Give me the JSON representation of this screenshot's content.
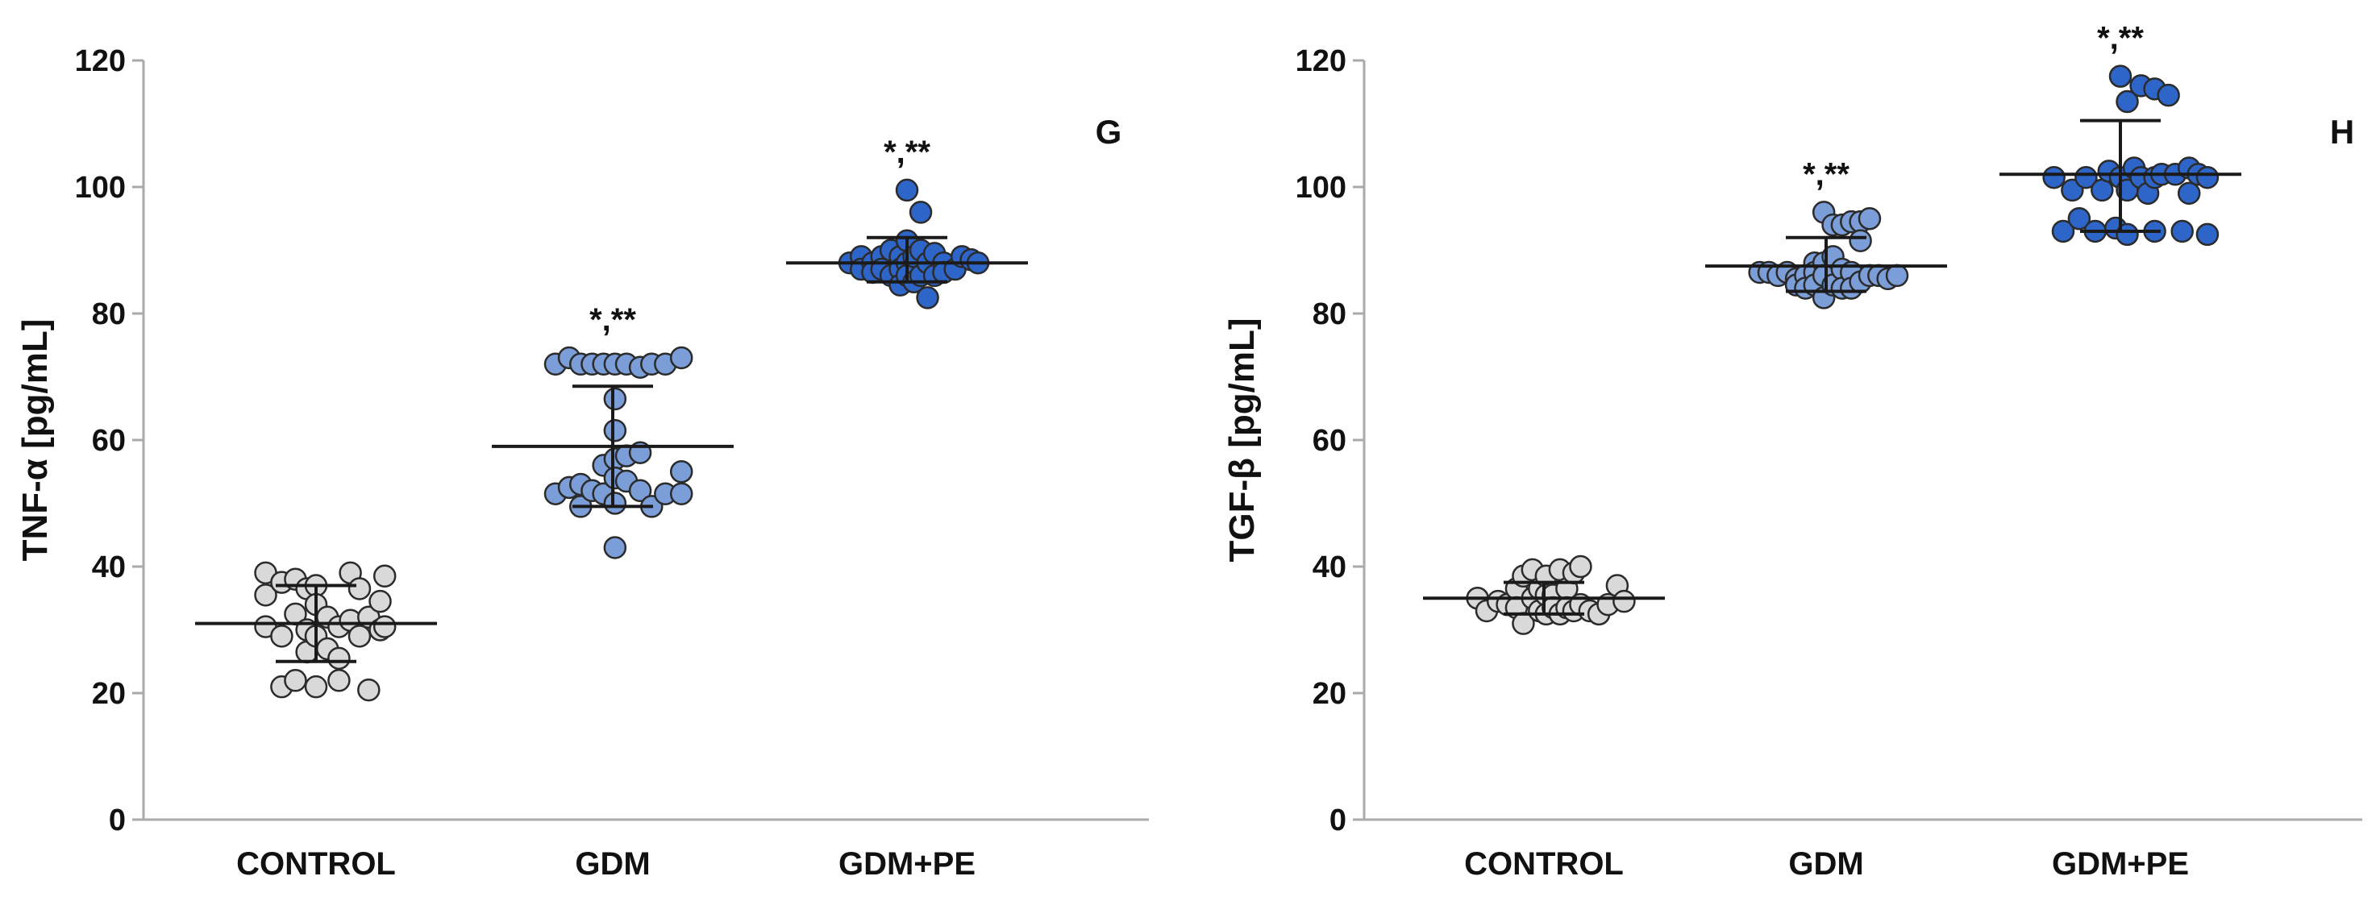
{
  "colors": {
    "axis": "#aaaaaa",
    "errorbar": "#1a1a1a",
    "point_stroke": "#2b2b2b",
    "series_fill": [
      "#d9d9d9",
      "#7b9ed8",
      "#2e65c9"
    ]
  },
  "chart_data": [
    {
      "type": "scatter",
      "panel_letter": "G",
      "ylabel": "TNF-α [pg/mL]",
      "ylim": [
        0,
        120
      ],
      "yticks": [
        0,
        20,
        40,
        60,
        80,
        100,
        120
      ],
      "yticks_text": [
        "0",
        "20",
        "40",
        "60",
        "80",
        "100",
        "120"
      ],
      "categories": [
        "CONTROL",
        "GDM",
        "GDM+PE"
      ],
      "series": [
        {
          "name": "CONTROL",
          "mean": 31,
          "err_low": 25,
          "err_high": 37,
          "annotation": "",
          "points": [
            [
              -0.44,
              39.0
            ],
            [
              -0.44,
              35.5
            ],
            [
              -0.44,
              30.5
            ],
            [
              -0.3,
              37.5
            ],
            [
              -0.3,
              29.0
            ],
            [
              -0.3,
              21.0
            ],
            [
              -0.18,
              32.5
            ],
            [
              -0.18,
              38.0
            ],
            [
              -0.18,
              22.0
            ],
            [
              -0.08,
              36.5
            ],
            [
              -0.08,
              30.0
            ],
            [
              -0.08,
              26.5
            ],
            [
              0.0,
              37.0
            ],
            [
              0.0,
              34.0
            ],
            [
              0.0,
              29.0
            ],
            [
              0.0,
              21.0
            ],
            [
              0.1,
              32.0
            ],
            [
              0.1,
              27.0
            ],
            [
              0.2,
              30.5
            ],
            [
              0.2,
              22.0
            ],
            [
              0.2,
              25.5
            ],
            [
              0.3,
              39.0
            ],
            [
              0.3,
              31.5
            ],
            [
              0.38,
              36.5
            ],
            [
              0.38,
              29.0
            ],
            [
              0.46,
              20.5
            ],
            [
              0.46,
              32.0
            ],
            [
              0.56,
              34.5
            ],
            [
              0.56,
              30.0
            ],
            [
              0.6,
              38.5
            ],
            [
              0.6,
              30.5
            ]
          ]
        },
        {
          "name": "GDM",
          "mean": 59,
          "err_low": 49.5,
          "err_high": 68.5,
          "annotation": "*,**",
          "points": [
            [
              -0.5,
              72.0
            ],
            [
              -0.5,
              51.5
            ],
            [
              -0.38,
              73.0
            ],
            [
              -0.38,
              52.5
            ],
            [
              -0.28,
              72.0
            ],
            [
              -0.28,
              53.0
            ],
            [
              -0.28,
              49.5
            ],
            [
              -0.18,
              72.0
            ],
            [
              -0.18,
              52.0
            ],
            [
              -0.08,
              72.0
            ],
            [
              -0.08,
              56.0
            ],
            [
              -0.08,
              51.5
            ],
            [
              0.02,
              72.0
            ],
            [
              0.02,
              66.5
            ],
            [
              0.02,
              61.5
            ],
            [
              0.02,
              57.0
            ],
            [
              0.02,
              54.0
            ],
            [
              0.02,
              50.0
            ],
            [
              0.02,
              43.0
            ],
            [
              0.12,
              72.0
            ],
            [
              0.12,
              57.5
            ],
            [
              0.12,
              53.5
            ],
            [
              0.24,
              71.5
            ],
            [
              0.24,
              58.0
            ],
            [
              0.24,
              52.0
            ],
            [
              0.34,
              72.0
            ],
            [
              0.34,
              49.5
            ],
            [
              0.46,
              72.0
            ],
            [
              0.46,
              51.5
            ],
            [
              0.6,
              73.0
            ],
            [
              0.6,
              55.0
            ],
            [
              0.6,
              51.5
            ]
          ]
        },
        {
          "name": "GDM+PE",
          "mean": 88,
          "err_low": 85,
          "err_high": 92,
          "annotation": "*,**",
          "points": [
            [
              -0.5,
              88.0
            ],
            [
              -0.4,
              89.0
            ],
            [
              -0.4,
              87.0
            ],
            [
              -0.3,
              88.0
            ],
            [
              -0.3,
              86.5
            ],
            [
              -0.22,
              89.0
            ],
            [
              -0.22,
              87.0
            ],
            [
              -0.14,
              90.0
            ],
            [
              -0.14,
              86.0
            ],
            [
              -0.06,
              89.0
            ],
            [
              -0.06,
              87.0
            ],
            [
              -0.06,
              84.5
            ],
            [
              0.0,
              99.5
            ],
            [
              0.0,
              91.5
            ],
            [
              0.0,
              88.0
            ],
            [
              0.0,
              86.0
            ],
            [
              0.06,
              89.0
            ],
            [
              0.06,
              85.0
            ],
            [
              0.12,
              96.0
            ],
            [
              0.12,
              90.0
            ],
            [
              0.12,
              86.0
            ],
            [
              0.18,
              88.0
            ],
            [
              0.18,
              82.5
            ],
            [
              0.24,
              89.5
            ],
            [
              0.24,
              86.0
            ],
            [
              0.32,
              88.0
            ],
            [
              0.32,
              86.5
            ],
            [
              0.42,
              87.0
            ],
            [
              0.48,
              89.0
            ],
            [
              0.56,
              88.5
            ],
            [
              0.62,
              88.0
            ]
          ]
        }
      ]
    },
    {
      "type": "scatter",
      "panel_letter": "H",
      "ylabel": "TGF-β [pg/mL]",
      "ylim": [
        0,
        120
      ],
      "yticks": [
        0,
        20,
        40,
        60,
        80,
        100,
        120
      ],
      "yticks_text": [
        "0",
        "20",
        "40",
        "60",
        "80",
        "100",
        "120"
      ],
      "categories": [
        "CONTROL",
        "GDM",
        "GDM+PE"
      ],
      "series": [
        {
          "name": "CONTROL",
          "mean": 35,
          "err_low": 32.5,
          "err_high": 37.5,
          "annotation": "",
          "points": [
            [
              -0.58,
              35.0
            ],
            [
              -0.5,
              33.0
            ],
            [
              -0.4,
              34.5
            ],
            [
              -0.32,
              34.0
            ],
            [
              -0.24,
              36.5
            ],
            [
              -0.24,
              33.5
            ],
            [
              -0.18,
              38.5
            ],
            [
              -0.18,
              31.0
            ],
            [
              -0.1,
              39.5
            ],
            [
              -0.1,
              35.0
            ],
            [
              -0.04,
              36.5
            ],
            [
              -0.04,
              33.0
            ],
            [
              0.02,
              38.5
            ],
            [
              0.02,
              35.5
            ],
            [
              0.02,
              32.5
            ],
            [
              0.08,
              35.5
            ],
            [
              0.08,
              33.5
            ],
            [
              0.14,
              39.5
            ],
            [
              0.14,
              32.5
            ],
            [
              0.2,
              36.5
            ],
            [
              0.2,
              33.5
            ],
            [
              0.26,
              39.0
            ],
            [
              0.26,
              33.0
            ],
            [
              0.32,
              40.0
            ],
            [
              0.32,
              34.0
            ],
            [
              0.4,
              33.0
            ],
            [
              0.48,
              32.5
            ],
            [
              0.56,
              34.0
            ],
            [
              0.64,
              37.0
            ],
            [
              0.7,
              34.5
            ]
          ]
        },
        {
          "name": "GDM",
          "mean": 87.5,
          "err_low": 83.5,
          "err_high": 92,
          "annotation": "*,**",
          "points": [
            [
              -0.58,
              86.5
            ],
            [
              -0.5,
              86.5
            ],
            [
              -0.42,
              86.0
            ],
            [
              -0.34,
              86.5
            ],
            [
              -0.26,
              85.5
            ],
            [
              -0.26,
              84.5
            ],
            [
              -0.18,
              86.0
            ],
            [
              -0.18,
              84.0
            ],
            [
              -0.1,
              88.0
            ],
            [
              -0.1,
              86.5
            ],
            [
              -0.1,
              84.5
            ],
            [
              -0.02,
              96.0
            ],
            [
              -0.02,
              88.0
            ],
            [
              -0.02,
              86.0
            ],
            [
              -0.02,
              82.5
            ],
            [
              0.06,
              94.0
            ],
            [
              0.06,
              89.0
            ],
            [
              0.06,
              84.5
            ],
            [
              0.14,
              94.0
            ],
            [
              0.14,
              87.0
            ],
            [
              0.14,
              84.0
            ],
            [
              0.22,
              94.5
            ],
            [
              0.22,
              86.5
            ],
            [
              0.22,
              84.0
            ],
            [
              0.3,
              94.5
            ],
            [
              0.3,
              91.5
            ],
            [
              0.3,
              85.0
            ],
            [
              0.38,
              95.0
            ],
            [
              0.38,
              86.0
            ],
            [
              0.46,
              86.0
            ],
            [
              0.54,
              85.5
            ],
            [
              0.62,
              86.0
            ]
          ]
        },
        {
          "name": "GDM+PE",
          "mean": 102,
          "err_low": 93,
          "err_high": 110.5,
          "annotation": "*,**",
          "points": [
            [
              -0.58,
              101.5
            ],
            [
              -0.5,
              93.0
            ],
            [
              -0.42,
              99.5
            ],
            [
              -0.36,
              95.0
            ],
            [
              -0.3,
              101.5
            ],
            [
              -0.22,
              93.0
            ],
            [
              -0.16,
              99.5
            ],
            [
              -0.1,
              102.5
            ],
            [
              -0.04,
              93.5
            ],
            [
              0.0,
              117.5
            ],
            [
              0.0,
              101.5
            ],
            [
              0.06,
              113.5
            ],
            [
              0.06,
              99.5
            ],
            [
              0.06,
              92.5
            ],
            [
              0.12,
              103.0
            ],
            [
              0.18,
              116.0
            ],
            [
              0.18,
              101.5
            ],
            [
              0.24,
              99.0
            ],
            [
              0.3,
              115.5
            ],
            [
              0.3,
              101.5
            ],
            [
              0.3,
              93.0
            ],
            [
              0.36,
              102.0
            ],
            [
              0.42,
              114.5
            ],
            [
              0.48,
              102.0
            ],
            [
              0.54,
              93.0
            ],
            [
              0.6,
              103.0
            ],
            [
              0.6,
              99.0
            ],
            [
              0.68,
              102.0
            ],
            [
              0.76,
              101.5
            ],
            [
              0.76,
              92.5
            ]
          ]
        }
      ]
    }
  ]
}
